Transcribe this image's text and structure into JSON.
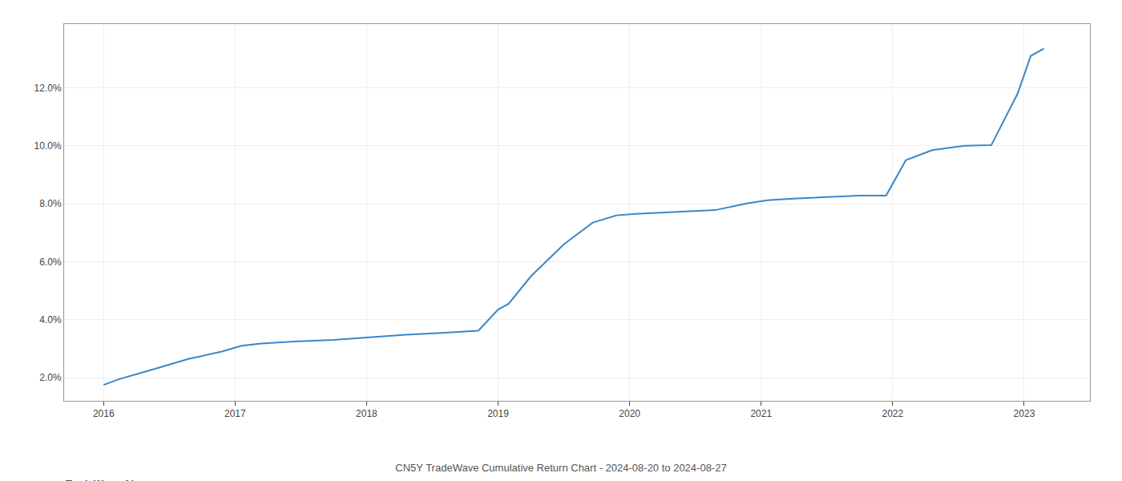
{
  "chart_data": {
    "type": "line",
    "title": "CN5Y TradeWave Cumulative Return Chart - 2024-08-20 to 2024-08-27",
    "annotations": [
      "TradeWave.AI"
    ],
    "x": [
      2016.0,
      2016.12,
      2016.35,
      2016.65,
      2016.9,
      2017.05,
      2017.2,
      2017.45,
      2017.75,
      2018.0,
      2018.3,
      2018.6,
      2018.85,
      2019.0,
      2019.08,
      2019.25,
      2019.5,
      2019.72,
      2019.9,
      2020.05,
      2020.2,
      2020.4,
      2020.65,
      2020.9,
      2021.05,
      2021.25,
      2021.5,
      2021.75,
      2021.95,
      2022.1,
      2022.3,
      2022.55,
      2022.75,
      2022.95,
      2023.05,
      2023.15
    ],
    "values": [
      1.75,
      1.95,
      2.25,
      2.65,
      2.9,
      3.1,
      3.18,
      3.25,
      3.3,
      3.38,
      3.48,
      3.55,
      3.62,
      4.35,
      4.55,
      5.5,
      6.6,
      7.35,
      7.6,
      7.65,
      7.68,
      7.72,
      7.78,
      8.02,
      8.12,
      8.18,
      8.22,
      8.28,
      8.28,
      9.5,
      9.85,
      10.0,
      10.02,
      11.8,
      13.1,
      13.35
    ],
    "color": "#3a86c8",
    "xlim": [
      2015.7,
      2023.5
    ],
    "ylim": [
      1.2,
      14.2
    ],
    "xticks": [
      2016,
      2017,
      2018,
      2019,
      2020,
      2021,
      2022,
      2023
    ],
    "yticks": [
      {
        "value": 2.0,
        "label": "2.0%"
      },
      {
        "value": 4.0,
        "label": "4.0%"
      },
      {
        "value": 6.0,
        "label": "6.0%"
      },
      {
        "value": 8.0,
        "label": "8.0%"
      },
      {
        "value": 10.0,
        "label": "10.0%"
      },
      {
        "value": 12.0,
        "label": "12.0%"
      }
    ],
    "grid": true
  }
}
